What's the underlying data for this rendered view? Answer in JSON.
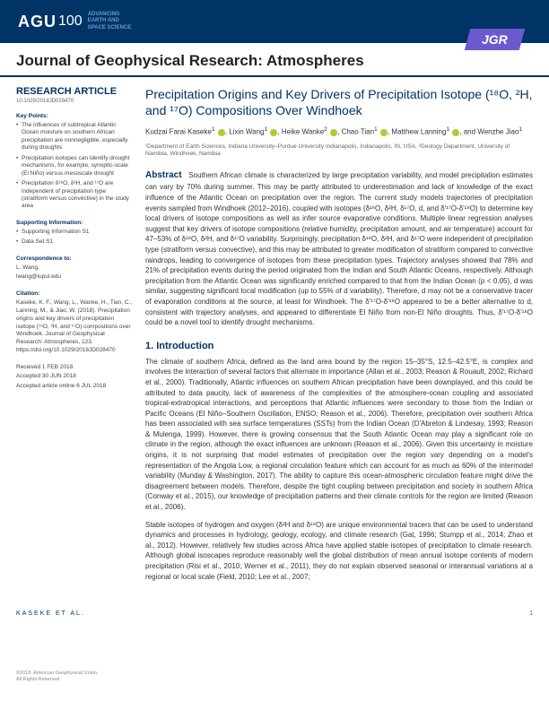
{
  "header": {
    "logo_main": "AGU",
    "logo_sub": "100",
    "tagline_l1": "ADVANCING",
    "tagline_l2": "EARTH AND",
    "tagline_l3": "SPACE SCIENCE",
    "tab": "JGR"
  },
  "journal_title": "Journal of Geophysical Research: Atmospheres",
  "sidebar": {
    "article_type": "RESEARCH ARTICLE",
    "doi": "10.1029/2018JD028470",
    "key_points_heading": "Key Points:",
    "key_points": [
      "The influences of subtropical Atlantic Ocean moisture on southern African precipitation are nonnegligible, especially during droughts",
      "Precipitation isotopes can identify drought mechanisms, for example, synoptic-scale (El Niño) versus mesoscale drought",
      "Precipitation δ¹⁸O, δ²H, and ¹⁷O are independent of precipitation type (stratiform versus convective) in the study area"
    ],
    "supporting_heading": "Supporting Information:",
    "supporting": [
      "Supporting Information S1",
      "Data Set S1"
    ],
    "correspondence_heading": "Correspondence to:",
    "correspondence_name": "L. Wang,",
    "correspondence_email": "lwang@iupui.edu",
    "citation_heading": "Citation:",
    "citation": "Kaseke, K. F., Wang, L., Wanke, H., Tian, C., Lanning, M., & Jiao, W. (2018). Precipitation origins and key drivers of precipitation isotope (¹⁸O, ²H, and ¹⁷O) compositions over Windhoek. Journal of Geophysical Research: Atmospheres, 123. https://doi.org/10.1029/2018JD028470",
    "received": "Received 1 FEB 2018",
    "accepted": "Accepted 30 JUN 2018",
    "accepted_online": "Accepted article online 6 JUL 2018"
  },
  "article": {
    "title": "Precipitation Origins and Key Drivers of Precipitation Isotope (¹⁸O, ²H, and ¹⁷O) Compositions Over Windhoek",
    "authors_html": "Kudzai Farai Kaseke¹ ⓘ, Lixin Wang¹ ⓘ, Heike Wanke² ⓘ, Chao Tian¹ ⓘ, Matthew Lanning¹ ⓘ, and Wenzhe Jiao¹",
    "affiliations": "¹Department of Earth Sciences, Indiana University–Purdue University Indianapolis, Indianapolis, IN, USA, ²Geology Department, University of Namibia, Windhoek, Namibia",
    "abstract_label": "Abstract",
    "abstract": "Southern African climate is characterized by large precipitation variability, and model precipitation estimates can vary by 70% during summer. This may be partly attributed to underestimation and lack of knowledge of the exact influence of the Atlantic Ocean on precipitation over the region. The current study models trajectories of precipitation events sampled from Windhoek (2012–2016), coupled with isotopes (δ¹⁸O, δ²H, δ¹⁷O, d, and δ'¹⁷O-δ'¹⁸O) to determine key local drivers of isotope compositions as well as infer source evaporative conditions. Multiple linear regression analyses suggest that key drivers of isotope compositions (relative humidity, precipitation amount, and air temperature) account for 47–53% of δ¹⁸O, δ²H, and δ¹⁷O variability. Surprisingly, precipitation δ¹⁸O, δ²H, and δ¹⁷O were independent of precipitation type (stratiform versus convective), and this may be attributed to greater modification of stratiform compared to convective raindrops, leading to convergence of isotopes from these precipitation types. Trajectory analyses showed that 78% and 21% of precipitation events during the period originated from the Indian and South Atlantic Oceans, respectively. Although precipitation from the Atlantic Ocean was significantly enriched compared to that from the Indian Ocean (p < 0.05), d was similar, suggesting significant local modification (up to 55% of d variability). Therefore, d may not be a conservative tracer of evaporation conditions at the source, at least for Windhoek. The δ'¹⁷O-δ'¹⁸O appeared to be a better alternative to d, consistent with trajectory analyses, and appeared to differentiate El Niño from non-El Niño droughts. Thus, δ'¹⁷O-δ'¹⁸O could be a novel tool to identify drought mechanisms.",
    "intro_heading": "1. Introduction",
    "intro_p1": "The climate of southern Africa, defined as the land area bound by the region 15–35°S, 12.5–42.5°E, is complex and involves the interaction of several factors that alternate in importance (Allan et al., 2003; Reason & Rouault, 2002; Richard et al., 2000). Traditionally, Atlantic influences on southern African precipitation have been downplayed, and this could be attributed to data paucity, lack of awareness of the complexities of the atmosphere-ocean coupling and associated tropical-extratropical interactions, and perceptions that Atlantic influences were secondary to those from the Indian or Pacific Oceans (El Niño–Southern Oscillation, ENSO; Reason et al., 2006). Therefore, precipitation over southern Africa has been associated with sea surface temperatures (SSTs) from the Indian Ocean (D'Abreton & Lindesay, 1993; Reason & Mulenga, 1999). However, there is growing consensus that the South Atlantic Ocean may play a significant role on climate in the region, although the exact influences are unknown (Reason et al., 2006). Given this uncertainty in moisture origins, it is not surprising that model estimates of precipitation over the region vary depending on a model's representation of the Angola Low, a regional circulation feature which can account for as much as 60% of the intermodel variability (Munday & Washington, 2017). The ability to capture this ocean-atmospheric circulation feature might drive the disagreement between models. Therefore, despite the tight coupling between precipitation and society in southern Africa (Conway et al., 2015), our knowledge of precipitation patterns and their climate controls for the region are limited (Reason et al., 2006).",
    "intro_p2": "Stable isotopes of hydrogen and oxygen (δ²H and δ¹⁸O) are unique environmental tracers that can be used to understand dynamics and processes in hydrology, geology, ecology, and climate research (Gat, 1996; Stumpp et al., 2014; Zhao et al., 2012). However, relatively few studies across Africa have applied stable isotopes of precipitation to climate research. Although global isoscapes reproduce reasonably well the global distribution of mean annual isotope contents of modern precipitation (Risi et al., 2010; Werner et al., 2011), they do not explain observed seasonal or interannual variations at a regional or local scale (Field, 2010; Lee et al., 2007;"
  },
  "footer": {
    "copyright": "©2018. American Geophysical Union.\nAll Rights Reserved.",
    "authors_short": "KASEKE ET AL.",
    "page": "1"
  },
  "colors": {
    "primary": "#003366",
    "tab": "#6a5acd",
    "orcid": "#a6ce39"
  }
}
